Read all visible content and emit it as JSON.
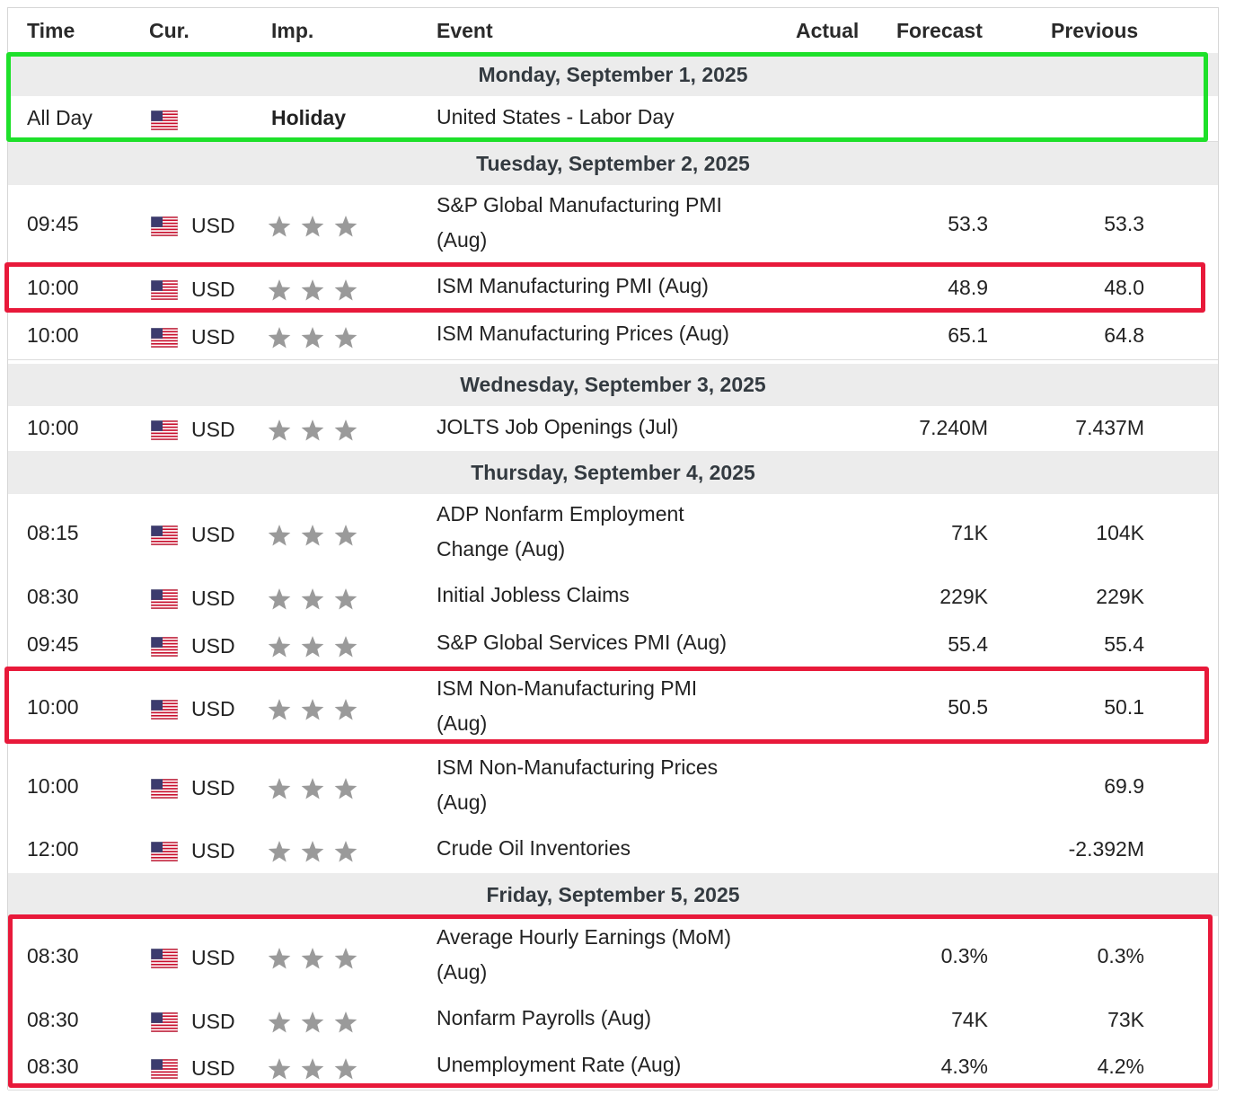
{
  "header": {
    "time": "Time",
    "cur": "Cur.",
    "imp": "Imp.",
    "event": "Event",
    "actual": "Actual",
    "forecast": "Forecast",
    "previous": "Previous"
  },
  "colors": {
    "highlight_red": "#e8193a",
    "highlight_green": "#1ee02a",
    "star": "#9a9a9a",
    "day_bg": "#ececec"
  },
  "icons": {
    "flag": "us-flag-icon",
    "importance": "star-icon"
  },
  "days": [
    {
      "label": "Monday, September 1, 2025",
      "rows": [
        {
          "time": "All Day",
          "currency": "",
          "importance": "Holiday",
          "event": [
            "United States - Labor Day"
          ],
          "actual": "",
          "forecast": "",
          "previous": ""
        }
      ]
    },
    {
      "label": "Tuesday, September 2, 2025",
      "rows": [
        {
          "time": "09:45",
          "currency": "USD",
          "importance": 3,
          "event": [
            "S&P Global Manufacturing PMI",
            "(Aug)"
          ],
          "actual": "",
          "forecast": "53.3",
          "previous": "53.3"
        },
        {
          "time": "10:00",
          "currency": "USD",
          "importance": 3,
          "event": [
            "ISM Manufacturing PMI (Aug)"
          ],
          "actual": "",
          "forecast": "48.9",
          "previous": "48.0"
        },
        {
          "time": "10:00",
          "currency": "USD",
          "importance": 3,
          "event": [
            "ISM Manufacturing Prices (Aug)"
          ],
          "actual": "",
          "forecast": "65.1",
          "previous": "64.8"
        }
      ]
    },
    {
      "label": "Wednesday, September 3, 2025",
      "rows": [
        {
          "time": "10:00",
          "currency": "USD",
          "importance": 3,
          "event": [
            "JOLTS Job Openings (Jul)"
          ],
          "actual": "",
          "forecast": "7.240M",
          "previous": "7.437M"
        }
      ]
    },
    {
      "label": "Thursday, September 4, 2025",
      "rows": [
        {
          "time": "08:15",
          "currency": "USD",
          "importance": 3,
          "event": [
            "ADP Nonfarm Employment",
            "Change (Aug)"
          ],
          "actual": "",
          "forecast": "71K",
          "previous": "104K"
        },
        {
          "time": "08:30",
          "currency": "USD",
          "importance": 3,
          "event": [
            "Initial Jobless Claims"
          ],
          "actual": "",
          "forecast": "229K",
          "previous": "229K"
        },
        {
          "time": "09:45",
          "currency": "USD",
          "importance": 3,
          "event": [
            "S&P Global Services PMI (Aug)"
          ],
          "actual": "",
          "forecast": "55.4",
          "previous": "55.4"
        },
        {
          "time": "10:00",
          "currency": "USD",
          "importance": 3,
          "event": [
            "ISM Non-Manufacturing PMI",
            "(Aug)"
          ],
          "actual": "",
          "forecast": "50.5",
          "previous": "50.1"
        },
        {
          "time": "10:00",
          "currency": "USD",
          "importance": 3,
          "event": [
            "ISM Non-Manufacturing Prices",
            "(Aug)"
          ],
          "actual": "",
          "forecast": "",
          "previous": "69.9"
        },
        {
          "time": "12:00",
          "currency": "USD",
          "importance": 3,
          "event": [
            "Crude Oil Inventories"
          ],
          "actual": "",
          "forecast": "",
          "previous": "-2.392M"
        }
      ]
    },
    {
      "label": "Friday, September 5, 2025",
      "rows": [
        {
          "time": "08:30",
          "currency": "USD",
          "importance": 3,
          "event": [
            "Average Hourly Earnings (MoM)",
            "(Aug)"
          ],
          "actual": "",
          "forecast": "0.3%",
          "previous": "0.3%"
        },
        {
          "time": "08:30",
          "currency": "USD",
          "importance": 3,
          "event": [
            "Nonfarm Payrolls (Aug)"
          ],
          "actual": "",
          "forecast": "74K",
          "previous": "73K"
        },
        {
          "time": "08:30",
          "currency": "USD",
          "importance": 3,
          "event": [
            "Unemployment Rate (Aug)"
          ],
          "actual": "",
          "forecast": "4.3%",
          "previous": "4.2%"
        }
      ]
    }
  ]
}
